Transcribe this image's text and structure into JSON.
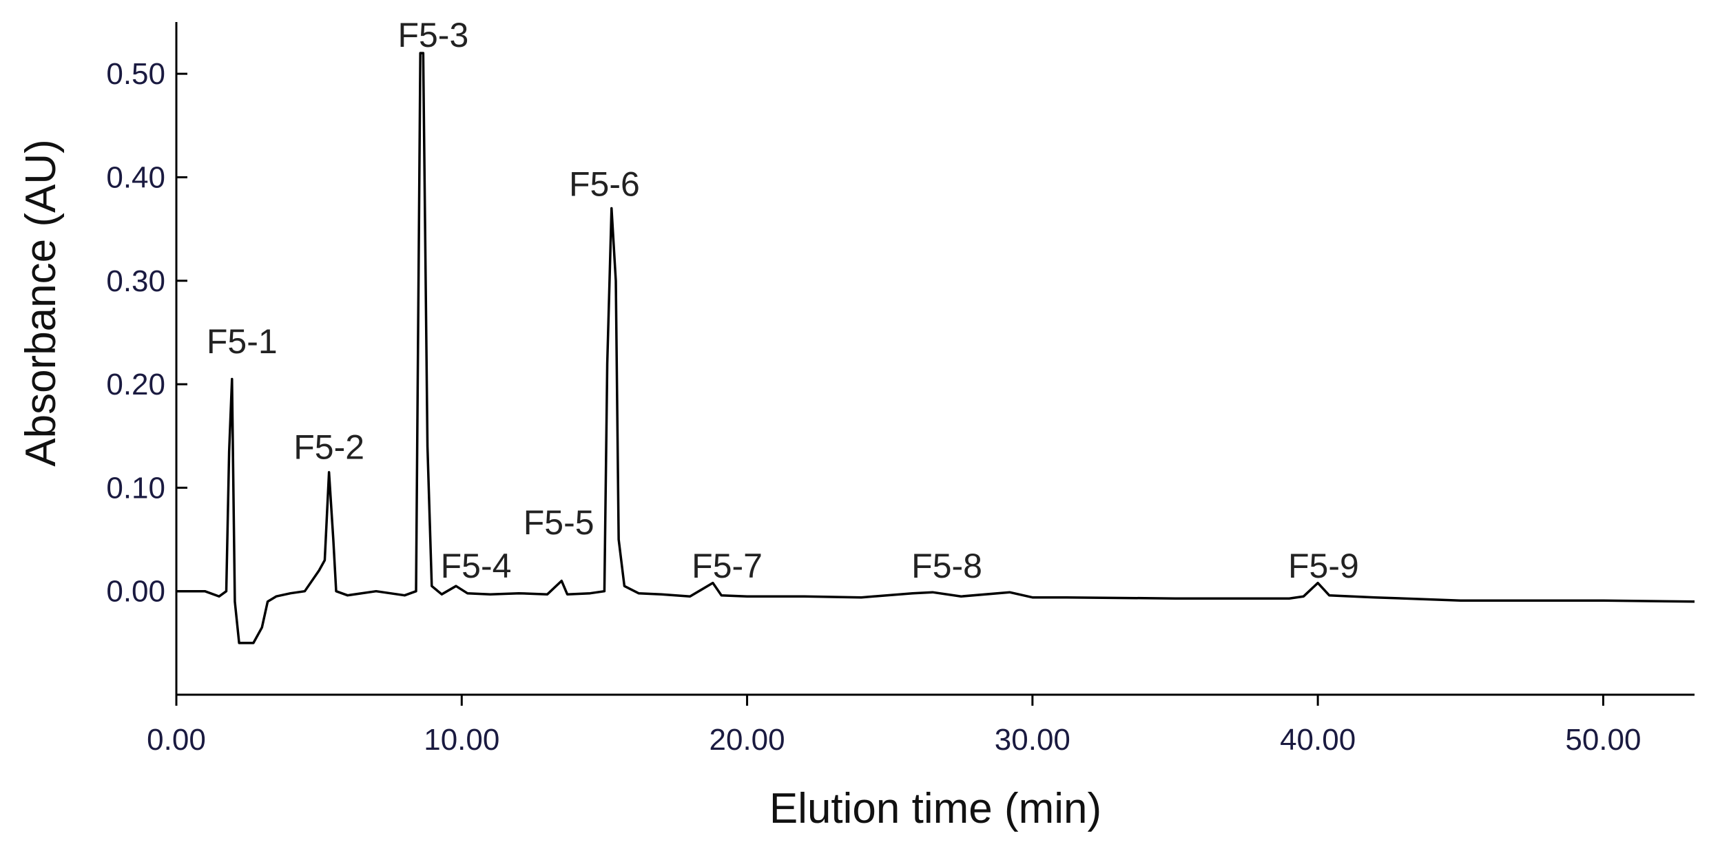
{
  "chart_data": {
    "type": "line",
    "xlabel": "Elution time (min)",
    "ylabel": "Absorbance (AU)",
    "x": [
      0,
      1.0,
      1.5,
      1.75,
      1.85,
      1.95,
      2.05,
      2.2,
      2.7,
      3.0,
      3.2,
      3.5,
      4.0,
      4.5,
      5.0,
      5.2,
      5.35,
      5.5,
      5.6,
      6.0,
      7.0,
      8.0,
      8.4,
      8.55,
      8.65,
      8.8,
      8.95,
      9.3,
      9.8,
      10.2,
      11.0,
      12.0,
      13.0,
      13.5,
      13.7,
      14.5,
      15.0,
      15.1,
      15.25,
      15.4,
      15.5,
      15.7,
      16.2,
      17.0,
      18.0,
      18.8,
      19.1,
      20.0,
      22.0,
      24.0,
      25.8,
      26.5,
      27.5,
      29.2,
      30.0,
      31.2,
      35.0,
      39.0,
      39.5,
      40.0,
      40.4,
      42.0,
      45.0,
      50.0,
      53.2
    ],
    "values": [
      0,
      0,
      -0.005,
      0,
      0.135,
      0.205,
      -0.01,
      -0.05,
      -0.05,
      -0.035,
      -0.01,
      -0.005,
      -0.002,
      0,
      0.02,
      0.03,
      0.115,
      0.05,
      0,
      -0.004,
      0,
      -0.004,
      0,
      0.52,
      0.52,
      0.14,
      0.005,
      -0.003,
      0.005,
      -0.002,
      -0.003,
      -0.002,
      -0.003,
      0.01,
      -0.003,
      -0.002,
      0,
      0.22,
      0.37,
      0.3,
      0.05,
      0.005,
      -0.002,
      -0.003,
      -0.005,
      0.008,
      -0.004,
      -0.005,
      -0.005,
      -0.006,
      -0.002,
      -0.001,
      -0.005,
      -0.001,
      -0.006,
      -0.006,
      -0.007,
      -0.007,
      -0.005,
      0.008,
      -0.004,
      -0.006,
      -0.009,
      -0.009,
      -0.01
    ],
    "color": "#000000",
    "xlim": [
      0,
      53.2
    ],
    "ylim": [
      -0.1,
      0.55
    ],
    "xticks": [
      {
        "value": 0,
        "label": "0.00"
      },
      {
        "value": 10,
        "label": "10.00"
      },
      {
        "value": 20,
        "label": "20.00"
      },
      {
        "value": 30,
        "label": "30.00"
      },
      {
        "value": 40,
        "label": "40.00"
      },
      {
        "value": 50,
        "label": "50.00"
      }
    ],
    "yticks": [
      {
        "value": 0,
        "label": "0.00"
      },
      {
        "value": 0.1,
        "label": "0.10"
      },
      {
        "value": 0.2,
        "label": "0.20"
      },
      {
        "value": 0.3,
        "label": "0.30"
      },
      {
        "value": 0.4,
        "label": "0.40"
      },
      {
        "value": 0.5,
        "label": "0.50"
      }
    ],
    "annotations": [
      {
        "text": "F5-1",
        "x": 2.3,
        "y": 0.23
      },
      {
        "text": "F5-2",
        "x": 5.35,
        "y": 0.128
      },
      {
        "text": "F5-3",
        "x": 9.0,
        "y": 0.526
      },
      {
        "text": "F5-4",
        "x": 10.5,
        "y": 0.013
      },
      {
        "text": "F5-5",
        "x": 13.4,
        "y": 0.055
      },
      {
        "text": "F5-6",
        "x": 15.0,
        "y": 0.382
      },
      {
        "text": "F5-7",
        "x": 19.3,
        "y": 0.013
      },
      {
        "text": "F5-8",
        "x": 27.0,
        "y": 0.013
      },
      {
        "text": "F5-9",
        "x": 40.2,
        "y": 0.013
      }
    ]
  }
}
